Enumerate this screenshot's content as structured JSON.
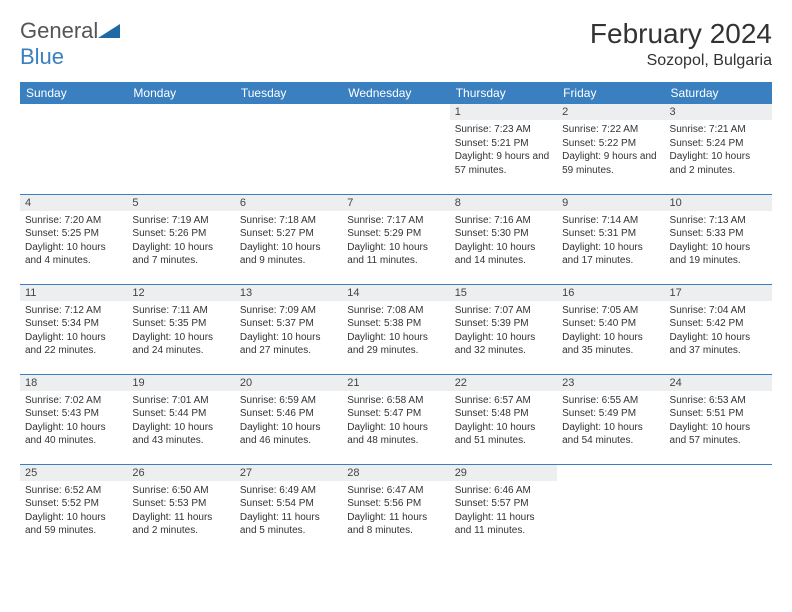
{
  "brand": {
    "word1": "General",
    "word2": "Blue"
  },
  "title": "February 2024",
  "location": "Sozopol, Bulgaria",
  "colors": {
    "header_bg": "#3a7fbf",
    "daynum_bg": "#eceeef",
    "border": "#3a7fbf"
  },
  "daynames": [
    "Sunday",
    "Monday",
    "Tuesday",
    "Wednesday",
    "Thursday",
    "Friday",
    "Saturday"
  ],
  "weeks": [
    [
      null,
      null,
      null,
      null,
      {
        "n": "1",
        "sr": "Sunrise: 7:23 AM",
        "ss": "Sunset: 5:21 PM",
        "dl": "Daylight: 9 hours and 57 minutes."
      },
      {
        "n": "2",
        "sr": "Sunrise: 7:22 AM",
        "ss": "Sunset: 5:22 PM",
        "dl": "Daylight: 9 hours and 59 minutes."
      },
      {
        "n": "3",
        "sr": "Sunrise: 7:21 AM",
        "ss": "Sunset: 5:24 PM",
        "dl": "Daylight: 10 hours and 2 minutes."
      }
    ],
    [
      {
        "n": "4",
        "sr": "Sunrise: 7:20 AM",
        "ss": "Sunset: 5:25 PM",
        "dl": "Daylight: 10 hours and 4 minutes."
      },
      {
        "n": "5",
        "sr": "Sunrise: 7:19 AM",
        "ss": "Sunset: 5:26 PM",
        "dl": "Daylight: 10 hours and 7 minutes."
      },
      {
        "n": "6",
        "sr": "Sunrise: 7:18 AM",
        "ss": "Sunset: 5:27 PM",
        "dl": "Daylight: 10 hours and 9 minutes."
      },
      {
        "n": "7",
        "sr": "Sunrise: 7:17 AM",
        "ss": "Sunset: 5:29 PM",
        "dl": "Daylight: 10 hours and 11 minutes."
      },
      {
        "n": "8",
        "sr": "Sunrise: 7:16 AM",
        "ss": "Sunset: 5:30 PM",
        "dl": "Daylight: 10 hours and 14 minutes."
      },
      {
        "n": "9",
        "sr": "Sunrise: 7:14 AM",
        "ss": "Sunset: 5:31 PM",
        "dl": "Daylight: 10 hours and 17 minutes."
      },
      {
        "n": "10",
        "sr": "Sunrise: 7:13 AM",
        "ss": "Sunset: 5:33 PM",
        "dl": "Daylight: 10 hours and 19 minutes."
      }
    ],
    [
      {
        "n": "11",
        "sr": "Sunrise: 7:12 AM",
        "ss": "Sunset: 5:34 PM",
        "dl": "Daylight: 10 hours and 22 minutes."
      },
      {
        "n": "12",
        "sr": "Sunrise: 7:11 AM",
        "ss": "Sunset: 5:35 PM",
        "dl": "Daylight: 10 hours and 24 minutes."
      },
      {
        "n": "13",
        "sr": "Sunrise: 7:09 AM",
        "ss": "Sunset: 5:37 PM",
        "dl": "Daylight: 10 hours and 27 minutes."
      },
      {
        "n": "14",
        "sr": "Sunrise: 7:08 AM",
        "ss": "Sunset: 5:38 PM",
        "dl": "Daylight: 10 hours and 29 minutes."
      },
      {
        "n": "15",
        "sr": "Sunrise: 7:07 AM",
        "ss": "Sunset: 5:39 PM",
        "dl": "Daylight: 10 hours and 32 minutes."
      },
      {
        "n": "16",
        "sr": "Sunrise: 7:05 AM",
        "ss": "Sunset: 5:40 PM",
        "dl": "Daylight: 10 hours and 35 minutes."
      },
      {
        "n": "17",
        "sr": "Sunrise: 7:04 AM",
        "ss": "Sunset: 5:42 PM",
        "dl": "Daylight: 10 hours and 37 minutes."
      }
    ],
    [
      {
        "n": "18",
        "sr": "Sunrise: 7:02 AM",
        "ss": "Sunset: 5:43 PM",
        "dl": "Daylight: 10 hours and 40 minutes."
      },
      {
        "n": "19",
        "sr": "Sunrise: 7:01 AM",
        "ss": "Sunset: 5:44 PM",
        "dl": "Daylight: 10 hours and 43 minutes."
      },
      {
        "n": "20",
        "sr": "Sunrise: 6:59 AM",
        "ss": "Sunset: 5:46 PM",
        "dl": "Daylight: 10 hours and 46 minutes."
      },
      {
        "n": "21",
        "sr": "Sunrise: 6:58 AM",
        "ss": "Sunset: 5:47 PM",
        "dl": "Daylight: 10 hours and 48 minutes."
      },
      {
        "n": "22",
        "sr": "Sunrise: 6:57 AM",
        "ss": "Sunset: 5:48 PM",
        "dl": "Daylight: 10 hours and 51 minutes."
      },
      {
        "n": "23",
        "sr": "Sunrise: 6:55 AM",
        "ss": "Sunset: 5:49 PM",
        "dl": "Daylight: 10 hours and 54 minutes."
      },
      {
        "n": "24",
        "sr": "Sunrise: 6:53 AM",
        "ss": "Sunset: 5:51 PM",
        "dl": "Daylight: 10 hours and 57 minutes."
      }
    ],
    [
      {
        "n": "25",
        "sr": "Sunrise: 6:52 AM",
        "ss": "Sunset: 5:52 PM",
        "dl": "Daylight: 10 hours and 59 minutes."
      },
      {
        "n": "26",
        "sr": "Sunrise: 6:50 AM",
        "ss": "Sunset: 5:53 PM",
        "dl": "Daylight: 11 hours and 2 minutes."
      },
      {
        "n": "27",
        "sr": "Sunrise: 6:49 AM",
        "ss": "Sunset: 5:54 PM",
        "dl": "Daylight: 11 hours and 5 minutes."
      },
      {
        "n": "28",
        "sr": "Sunrise: 6:47 AM",
        "ss": "Sunset: 5:56 PM",
        "dl": "Daylight: 11 hours and 8 minutes."
      },
      {
        "n": "29",
        "sr": "Sunrise: 6:46 AM",
        "ss": "Sunset: 5:57 PM",
        "dl": "Daylight: 11 hours and 11 minutes."
      },
      null,
      null
    ]
  ]
}
